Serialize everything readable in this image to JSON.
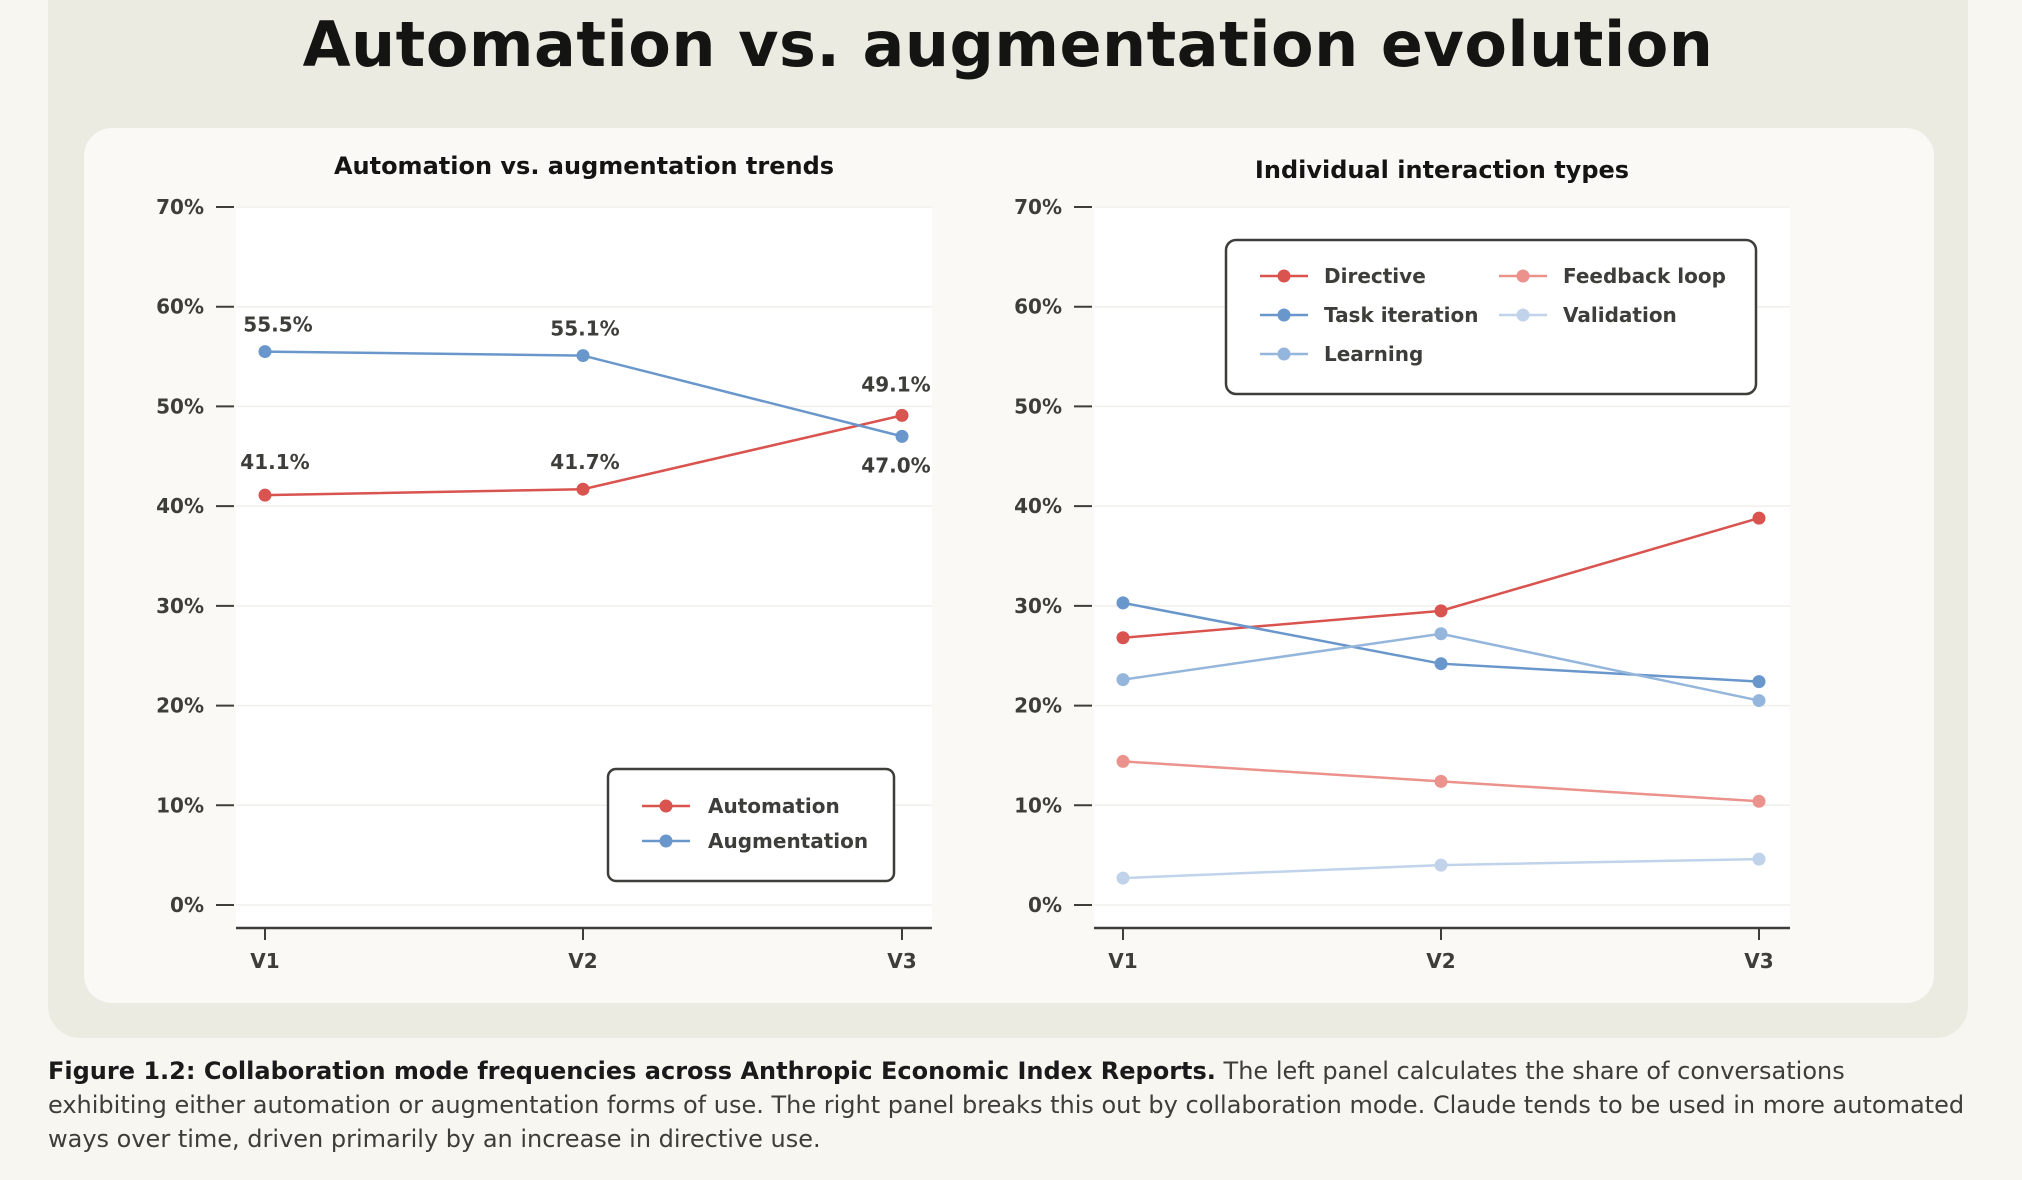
{
  "page": {
    "title": "Automation vs. augmentation evolution",
    "caption_bold": "Figure 1.2: Collaboration mode frequencies across Anthropic Economic Index Reports.",
    "caption_text": " The left panel calculates the share of conversations exhibiting either automation or augmentation forms of use. The right panel breaks this out by collaboration mode. Claude tends to be used in more automated ways over time, driven primarily by an increase in directive use."
  },
  "chart_data": [
    {
      "type": "line",
      "title": "Automation vs. augmentation trends",
      "x": [
        "V1",
        "V2",
        "V3"
      ],
      "ylim": [
        0,
        70
      ],
      "yticks": [
        0,
        10,
        20,
        30,
        40,
        50,
        60,
        70
      ],
      "ytick_labels": [
        "0%",
        "10%",
        "20%",
        "30%",
        "40%",
        "50%",
        "60%",
        "70%"
      ],
      "legend_position": "bottom-right",
      "series": [
        {
          "name": "Automation",
          "color": "#d9534f",
          "values": [
            41.1,
            41.7,
            49.1
          ],
          "labels": [
            "41.1%",
            "41.7%",
            "49.1%"
          ]
        },
        {
          "name": "Augmentation",
          "color": "#6a97cb",
          "values": [
            55.5,
            55.1,
            47.0
          ],
          "labels": [
            "55.5%",
            "55.1%",
            "47.0%"
          ]
        }
      ]
    },
    {
      "type": "line",
      "title": "Individual interaction types",
      "x": [
        "V1",
        "V2",
        "V3"
      ],
      "ylim": [
        0,
        70
      ],
      "yticks": [
        0,
        10,
        20,
        30,
        40,
        50,
        60,
        70
      ],
      "ytick_labels": [
        "0%",
        "10%",
        "20%",
        "30%",
        "40%",
        "50%",
        "60%",
        "70%"
      ],
      "legend_position": "top",
      "series": [
        {
          "name": "Directive",
          "color": "#d9534f",
          "values": [
            26.8,
            29.5,
            38.8
          ]
        },
        {
          "name": "Task iteration",
          "color": "#6a97cb",
          "values": [
            30.3,
            24.2,
            22.4
          ]
        },
        {
          "name": "Learning",
          "color": "#95b6dc",
          "values": [
            22.6,
            27.2,
            20.5
          ]
        },
        {
          "name": "Feedback loop",
          "color": "#ec928c",
          "values": [
            14.4,
            12.4,
            10.4
          ]
        },
        {
          "name": "Validation",
          "color": "#c0d3ea",
          "values": [
            2.7,
            4.0,
            4.6
          ]
        }
      ]
    }
  ]
}
